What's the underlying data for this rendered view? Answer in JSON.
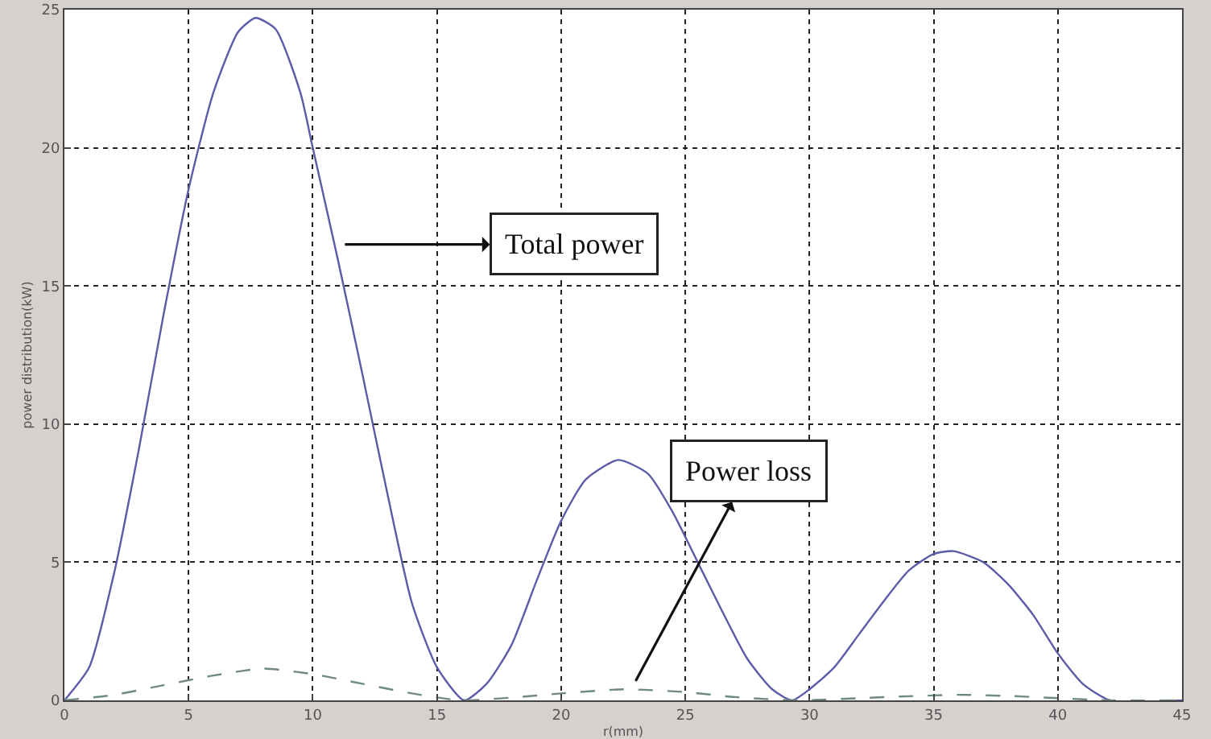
{
  "chart_data": {
    "type": "line",
    "xlabel": "r(mm)",
    "ylabel": "power distribution(kW)",
    "xlim": [
      0,
      45
    ],
    "xticks": [
      0,
      5,
      10,
      15,
      20,
      25,
      30,
      35,
      40,
      45
    ],
    "ylim": [
      0,
      25
    ],
    "yticks": [
      0,
      5,
      10,
      15,
      20,
      25
    ],
    "grid": true,
    "marker": "none",
    "series": [
      {
        "color": "#5b5ba8",
        "line_style": "solid",
        "x": [
          0,
          1,
          2,
          3,
          4,
          5,
          6,
          7,
          7.7,
          8.5,
          9.5,
          10,
          11,
          12,
          13,
          14,
          15,
          16.1,
          17,
          18,
          19,
          20,
          21,
          22.3,
          23.5,
          24.5,
          25.5,
          26.5,
          27.5,
          28.5,
          29.3,
          30,
          31,
          32,
          33,
          34,
          35,
          35.8,
          37,
          38,
          39,
          40,
          41,
          42.1,
          45
        ],
        "values": [
          0,
          1.2,
          4.6,
          9.1,
          14,
          18.5,
          22,
          24.2,
          24.7,
          24.3,
          22,
          20,
          16,
          11.8,
          7.5,
          3.5,
          1.2,
          0,
          0.6,
          2,
          4.3,
          6.5,
          8,
          8.7,
          8.2,
          6.8,
          5,
          3.2,
          1.5,
          0.4,
          0,
          0.4,
          1.2,
          2.4,
          3.6,
          4.7,
          5.3,
          5.4,
          5,
          4.2,
          3.1,
          1.7,
          0.6,
          0,
          0
        ]
      },
      {
        "color": "#6f8a80",
        "line_style": "dashed",
        "x": [
          0,
          2,
          4,
          6,
          8,
          10,
          12,
          14,
          16,
          18,
          20,
          22.5,
          25,
          27,
          29.5,
          32,
          34,
          36,
          38,
          40,
          42,
          45
        ],
        "values": [
          0,
          0.2,
          0.55,
          0.9,
          1.15,
          0.95,
          0.6,
          0.25,
          0,
          0.1,
          0.25,
          0.4,
          0.3,
          0.12,
          0,
          0.08,
          0.15,
          0.2,
          0.16,
          0.08,
          0,
          0
        ]
      }
    ],
    "annotations": [
      "Total power",
      {
        "text": "Power loss",
        "x": 23,
        "y": 0.7
      }
    ]
  }
}
